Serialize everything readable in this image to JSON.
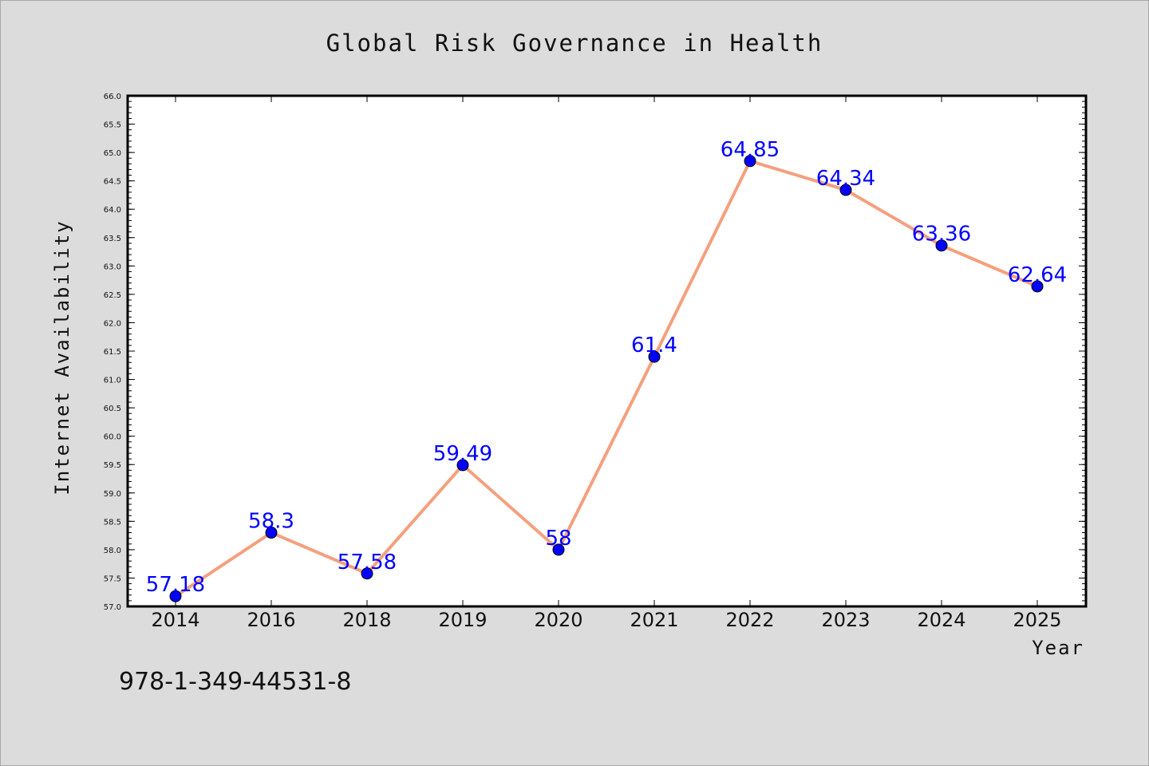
{
  "chart_data": {
    "type": "line",
    "title": "Global Risk Governance in Health",
    "xlabel": "Year",
    "ylabel": "Internet Availability",
    "categories": [
      "2014",
      "2016",
      "2018",
      "2019",
      "2020",
      "2021",
      "2022",
      "2023",
      "2024",
      "2025"
    ],
    "series": [
      {
        "values": [
          57.18,
          58.3,
          57.58,
          59.49,
          58,
          61.4,
          64.85,
          64.34,
          63.36,
          62.64
        ]
      }
    ],
    "data_labels": [
      "57.18",
      "58.3",
      "57.58",
      "59.49",
      "58",
      "61.4",
      "64.85",
      "64.34",
      "63.36",
      "62.64"
    ],
    "ylim": [
      57.0,
      66.0
    ],
    "y_ticks": [
      "57.0",
      "57.5",
      "58.0",
      "58.5",
      "59.0",
      "59.5",
      "60.0",
      "60.5",
      "61.0",
      "61.5",
      "62.0",
      "62.5",
      "63.0",
      "63.5",
      "64.0",
      "64.5",
      "65.0",
      "65.5",
      "66.0"
    ],
    "grid": false,
    "legend": "none",
    "colors": {
      "line": "#f4a07e",
      "marker": "#0000ff",
      "data_label": "#0000ff",
      "plot_background": "#ffffff",
      "page_background": "#dcdcdc"
    }
  },
  "footer_text": "978-1-349-44531-8"
}
